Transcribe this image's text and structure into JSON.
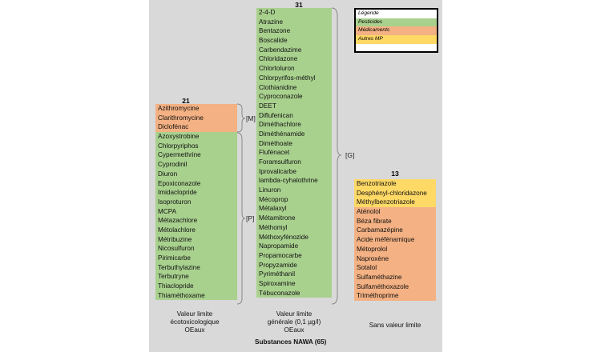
{
  "legend": {
    "items": [
      {
        "label": "Légende",
        "color": "#ffffff"
      },
      {
        "label": "Pesticides",
        "color": "#a9d18e"
      },
      {
        "label": "Médicaments",
        "color": "#f4b183"
      },
      {
        "label": "Autres MP",
        "color": "#ffd966"
      }
    ]
  },
  "columns": {
    "left": {
      "count": "21",
      "medicaments": [
        "Azithromycine",
        "Clarithromycine",
        "Diclofénac"
      ],
      "pesticides": [
        "Azoxystrobine",
        "Chlorpyriphos",
        "Cypermethrine",
        "Cyprodinil",
        "Diuron",
        "Epoxiconazole",
        "Imidaclopride",
        "Isoproturon",
        "MCPA",
        "Métazachlore",
        "Métolachlore",
        "Métribuzine",
        "Nicosulfuron",
        "Pirimicarbe",
        "Terbuthylazine",
        "Terbutryne",
        "Thiaclopride",
        "Thiaméthoxame"
      ],
      "brace_medicaments": "[M]",
      "brace_pesticides": "[P]",
      "caption": [
        "Valeur limite",
        "écotoxicologique",
        "OEaux"
      ]
    },
    "middle": {
      "count": "31",
      "pesticides": [
        "2-4-D",
        "Atrazine",
        "Bentazone",
        "Boscalide",
        "Carbendazime",
        "Chloridazone",
        "Chlortoluron",
        "Chlorpyrifos-méthyl",
        "Clothianidine",
        "Cyproconazole",
        "DEET",
        "Diflufenican",
        "Diméthachlore",
        "Diméthénamide",
        "Diméthoate",
        "Flufénacet",
        "Foramsulfuron",
        "Iprovalicarbe",
        "lambda-cyhalothrine",
        "Linuron",
        "Mécoprop",
        "Métalaxyl",
        "Métamitrone",
        "Méthomyl",
        "Méthoxyfénozide",
        "Napropamide",
        "Propamocarbe",
        "Propyzamide",
        "Pyriméthanil",
        "Spiroxamine",
        "Tébuconazole"
      ],
      "brace": "[G]",
      "caption": [
        "Valeur limite",
        "générale (0,1 µg/l)",
        "OEaux"
      ]
    },
    "right": {
      "count": "13",
      "autres": [
        "Benzotriazole",
        "Desphényl-chloridazone",
        "Méthylbenzotriazole"
      ],
      "medicaments": [
        "Aténolol",
        "Béza fibrate",
        "Carbamazépine",
        "Acide méfénamique",
        "Métoprolol",
        "Naproxène",
        "Sotalol",
        "Sulfaméthazine",
        "Sulfaméthoxazole",
        "Triméthoprime"
      ],
      "caption": [
        "Sans valeur limite"
      ]
    }
  },
  "footer": "Substances NAWA (65)"
}
